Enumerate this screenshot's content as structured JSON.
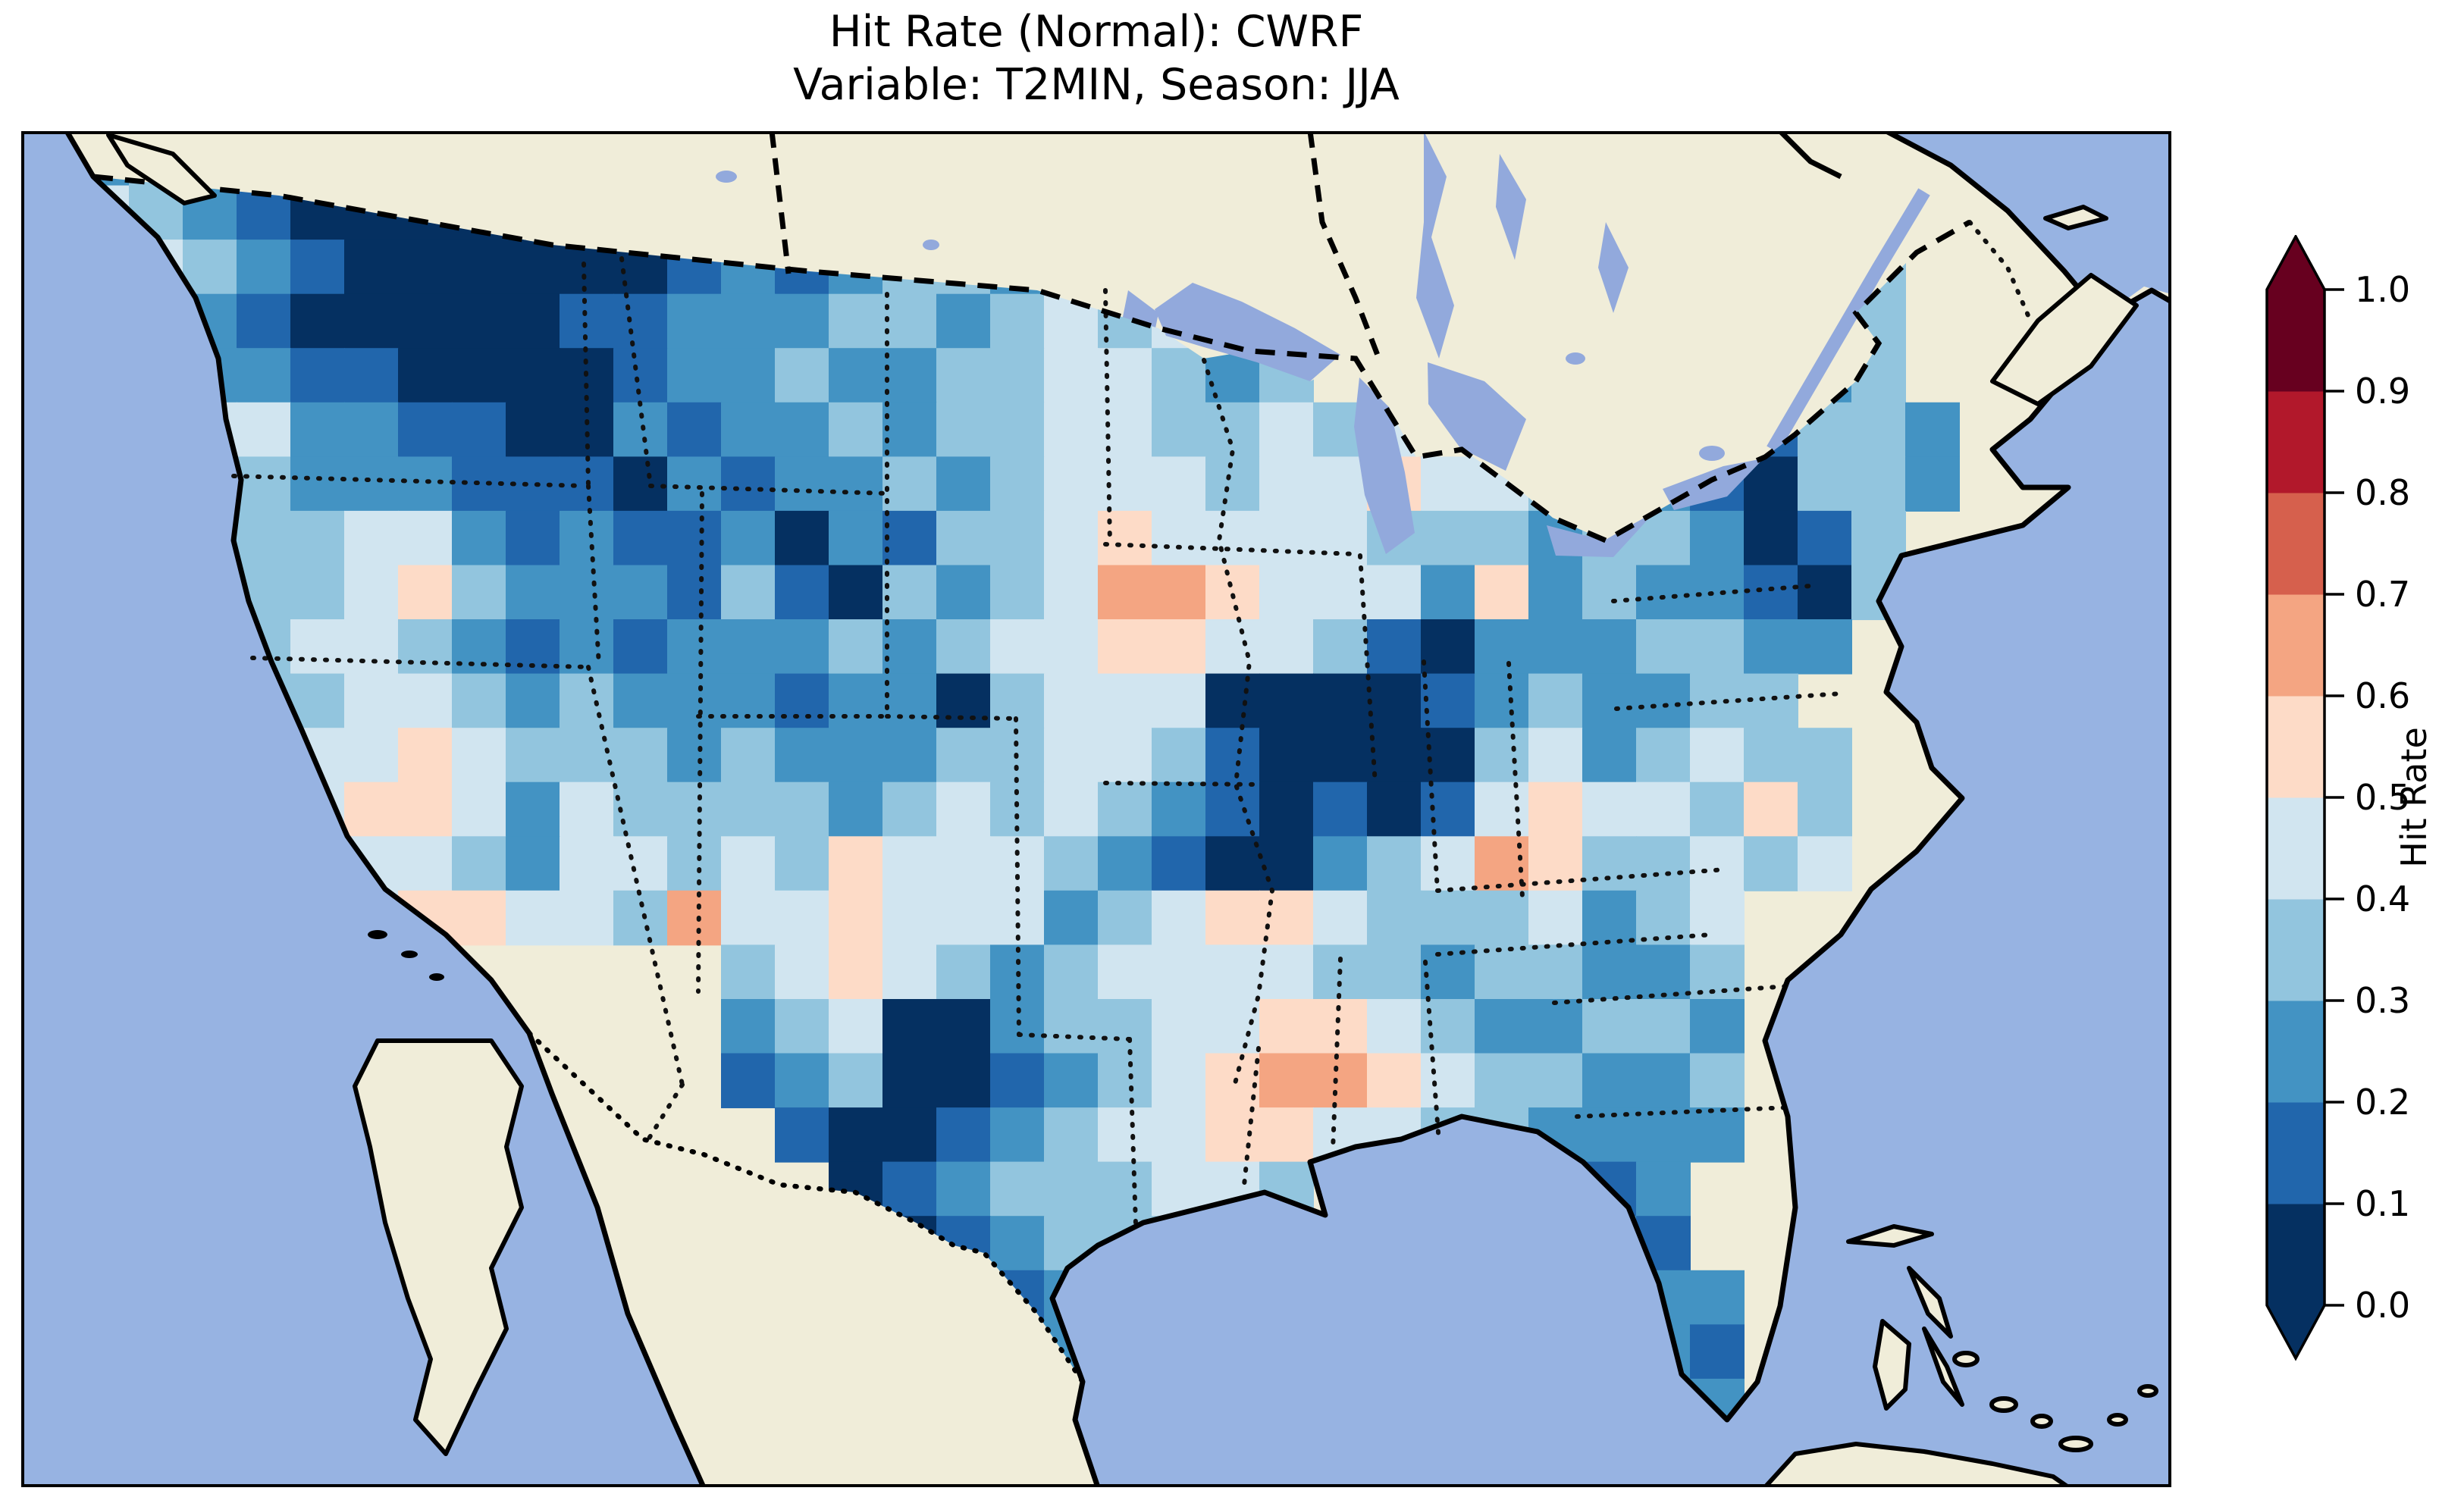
{
  "title": {
    "line1": "Hit Rate (Normal): CWRF",
    "line2": "Variable: T2MIN, Season: JJA"
  },
  "colorbar": {
    "label": "Hit Rate",
    "ticks": [
      "0.0",
      "0.1",
      "0.2",
      "0.3",
      "0.4",
      "0.5",
      "0.6",
      "0.7",
      "0.8",
      "0.9",
      "1.0"
    ],
    "bin_colors_bottom_to_top": [
      "#053061",
      "#2166ac",
      "#4393c3",
      "#92c5de",
      "#d1e5f0",
      "#fddbc7",
      "#f4a582",
      "#d6604d",
      "#b2182b",
      "#67001f"
    ],
    "extend_low_color": "#053061",
    "extend_high_color": "#67001f"
  },
  "map": {
    "ocean_color": "#97b3e2",
    "land_color": "#f0edd9",
    "lake_color": "#92a9dc",
    "coast_color": "#000000",
    "cell_palette": {
      "0": "#053061",
      "1": "#2166ac",
      "2": "#4393c3",
      "3": "#92c5de",
      "4": "#d1e5f0",
      "5": "#fddbc7",
      "6": "#f4a582",
      "7": "#d6604d",
      "8": "#b2182b",
      "9": "#67001f"
    }
  },
  "chart_data": {
    "type": "heatmap",
    "title": "Hit Rate (Normal): CWRF",
    "subtitle": "Variable: T2MIN, Season: JJA",
    "metric": "Hit Rate (Normal)",
    "model": "CWRF",
    "variable": "T2MIN",
    "season": "JJA",
    "region": "Continental United States (gridded cells over CONUS only)",
    "colorbar": {
      "label": "Hit Rate",
      "range": [
        0.0,
        1.0
      ],
      "tick_step": 0.1,
      "ticks": [
        0.0,
        0.1,
        0.2,
        0.3,
        0.4,
        0.5,
        0.6,
        0.7,
        0.8,
        0.9,
        1.0
      ],
      "colormap": "RdBu_r, 10 discrete bins",
      "extend": "both"
    },
    "value_summary": "Dominantly blue (hit rate 0.0-0.5). Darkest cells (<0.1) over E Washington/Idaho/Montana, central Missouri-Illinois, central Texas and scattered Rockies. Salmon cells (0.5-0.7) over Iowa, northern Louisiana, W Texas/New Mexico, the Tennessee-Virginia border and the North Carolina coast. No cells above ~0.7.",
    "grid": {
      "note": "Approximate 40x25 reconstruction of the cell field; char = color bin",
      "encoding": "'0'-'6' = bin lower bound x10 (e.g. '3' = 0.3-0.4); '.' = no data (outside CONUS)",
      "bin_size": 0.1,
      "cols": 40,
      "rows": [
        ".2332000000011223323....................",
        ".432100000011223233243........ ..433.....",
        ".343210000001212332343........ ..433.....",
        ".232100000112223323434........ ..323.....",
        ".2322110000122322334 4323...... ..223.....",
        ".3344221100212232334433434.....11332....",
        ".4233222111021223234443445443 3210332....",
        ".222334421211202133454444333 2332013.....",
        ".122334532221310323466544425 2322103.....",
        ".11334432121222323445544310222 3322......",
        ".2113344323222122034440000123 2233.......",
        ".23234454333232223344310000342 3433......",
        ".2234455424333323434321010145 44353......",
        ".1234544324434354443210023465 33434......",
        "...33445544364454442345543334234........",
        ".............3454323444433233223........",
        ".............2340023344554322332........",
        ".............1230012345665433223........",
        "..............1001234455443322 22........",
        "...............01233 3443....212.........",
        "................0123 33......121.........",
        ".................0123.......2322........",
        "..................12.........321........",
        "...................2..........22........",
        "........................................"
      ]
    }
  }
}
